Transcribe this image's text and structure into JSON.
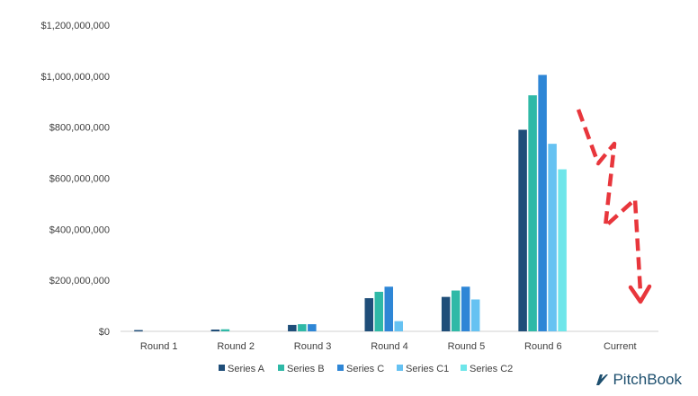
{
  "chart_data": {
    "type": "bar",
    "categories": [
      "Round 1",
      "Round 2",
      "Round 3",
      "Round 4",
      "Round 5",
      "Round 6",
      "Current"
    ],
    "series": [
      {
        "name": "Series A",
        "color": "#1f4e79",
        "values": [
          5000000,
          7000000,
          25000000,
          130000000,
          135000000,
          790000000,
          null
        ]
      },
      {
        "name": "Series B",
        "color": "#2fb9a7",
        "values": [
          null,
          8000000,
          28000000,
          155000000,
          160000000,
          925000000,
          null
        ]
      },
      {
        "name": "Series C",
        "color": "#2e86d6",
        "values": [
          null,
          null,
          28000000,
          175000000,
          175000000,
          1005000000,
          null
        ]
      },
      {
        "name": "Series C1",
        "color": "#66c2f2",
        "values": [
          null,
          null,
          null,
          40000000,
          125000000,
          735000000,
          null
        ]
      },
      {
        "name": "Series C2",
        "color": "#6ee6ea",
        "values": [
          null,
          null,
          null,
          null,
          null,
          635000000,
          null
        ]
      }
    ],
    "ylim": [
      0,
      1200000000
    ],
    "yticks": [
      "$0",
      "$200,000,000",
      "$400,000,000",
      "$600,000,000",
      "$800,000,000",
      "$1,000,000,000",
      "$1,200,000,000"
    ],
    "grid": false,
    "legend": "bottom-center",
    "annotation": {
      "type": "decline-arrow",
      "color": "#e8363c"
    }
  },
  "brand": {
    "name": "PitchBook"
  }
}
